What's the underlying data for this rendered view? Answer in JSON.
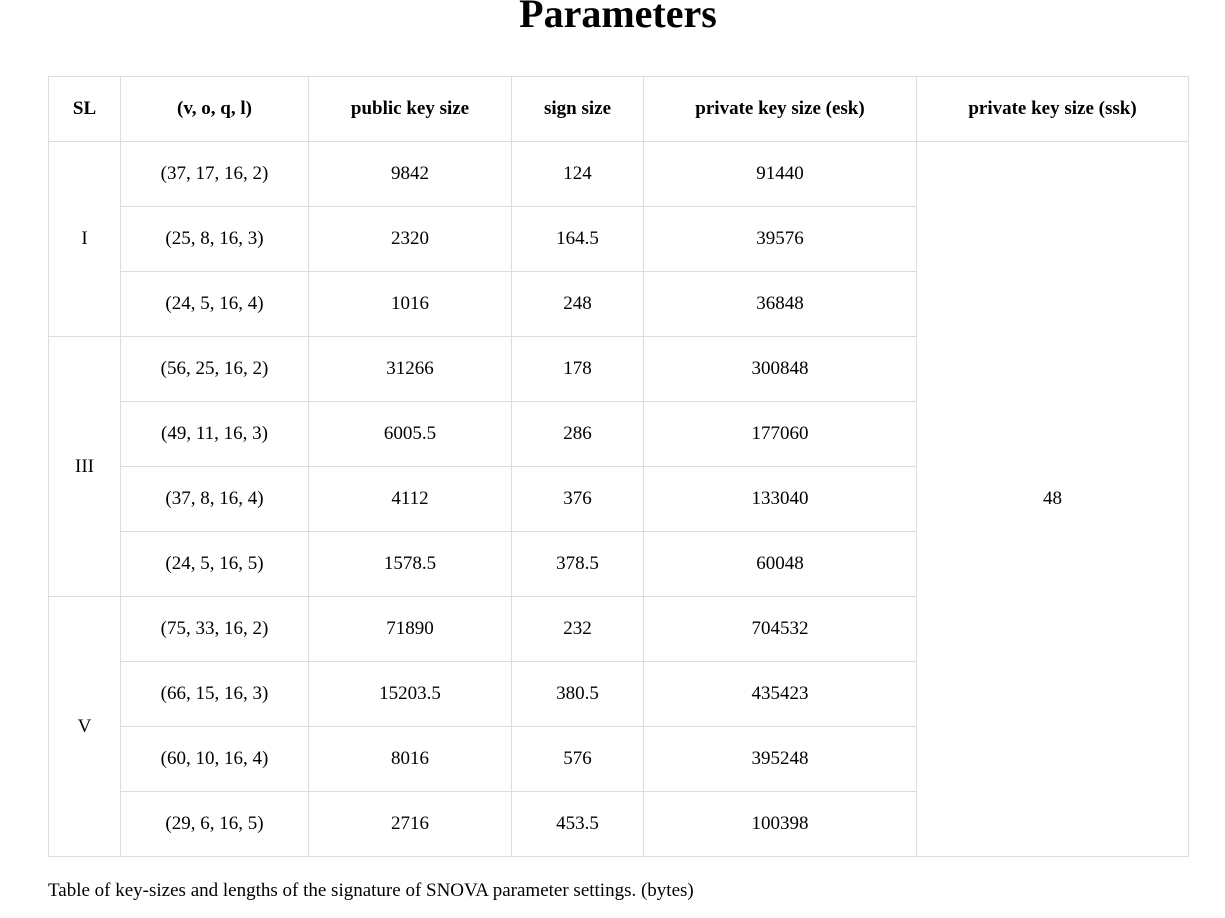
{
  "title": "Parameters",
  "headers": [
    "SL",
    "(v, o, q, l)",
    "public key size",
    "sign size",
    "private key size (esk)",
    "private key size (ssk)"
  ],
  "ssk_value": "48",
  "groups": [
    {
      "sl": "I",
      "rows": [
        {
          "params": "(37, 17, 16, 2)",
          "pk": "9842",
          "sign": "124",
          "esk": "91440"
        },
        {
          "params": "(25, 8, 16, 3)",
          "pk": "2320",
          "sign": "164.5",
          "esk": "39576"
        },
        {
          "params": "(24, 5, 16, 4)",
          "pk": "1016",
          "sign": "248",
          "esk": "36848"
        }
      ]
    },
    {
      "sl": "III",
      "rows": [
        {
          "params": "(56, 25, 16, 2)",
          "pk": "31266",
          "sign": "178",
          "esk": "300848"
        },
        {
          "params": "(49, 11, 16, 3)",
          "pk": "6005.5",
          "sign": "286",
          "esk": "177060"
        },
        {
          "params": "(37, 8, 16, 4)",
          "pk": "4112",
          "sign": "376",
          "esk": "133040"
        },
        {
          "params": "(24, 5, 16, 5)",
          "pk": "1578.5",
          "sign": "378.5",
          "esk": "60048"
        }
      ]
    },
    {
      "sl": "V",
      "rows": [
        {
          "params": "(75, 33, 16, 2)",
          "pk": "71890",
          "sign": "232",
          "esk": "704532"
        },
        {
          "params": "(66, 15, 16, 3)",
          "pk": "15203.5",
          "sign": "380.5",
          "esk": "435423"
        },
        {
          "params": "(60, 10, 16, 4)",
          "pk": "8016",
          "sign": "576",
          "esk": "395248"
        },
        {
          "params": "(29, 6, 16, 5)",
          "pk": "2716",
          "sign": "453.5",
          "esk": "100398"
        }
      ]
    }
  ],
  "caption": "Table of key-sizes and lengths of the signature of SNOVA parameter settings. (bytes)"
}
